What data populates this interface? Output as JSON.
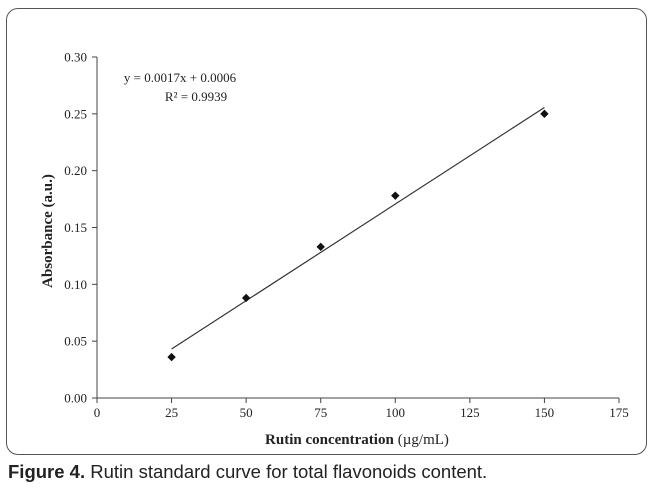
{
  "chart_data": {
    "type": "scatter",
    "xlabel": "Rutin concentration",
    "xlabel_unit": "(µg/mL)",
    "ylabel": "Absorbance (a.u.)",
    "xlim": [
      0,
      175
    ],
    "ylim": [
      0,
      0.3
    ],
    "x_ticks": [
      "0",
      "25",
      "50",
      "75",
      "100",
      "125",
      "150",
      "175"
    ],
    "y_ticks": [
      "0.00",
      "0.05",
      "0.10",
      "0.15",
      "0.20",
      "0.25",
      "0.30"
    ],
    "series": [
      {
        "x": [
          25,
          50,
          75,
          100,
          150
        ],
        "y": [
          0.036,
          0.088,
          0.133,
          0.178,
          0.25
        ]
      }
    ],
    "trendline": {
      "type": "linear",
      "slope": 0.0017,
      "intercept": 0.0006,
      "x_range": [
        25,
        150
      ],
      "equation_label": "y = 0.0017x + 0.0006",
      "r2_label": "R² = 0.9939"
    },
    "grid": false,
    "legend": "none"
  },
  "caption": {
    "label": "Figure 4.",
    "text": " Rutin standard curve for total flavonoids content."
  }
}
